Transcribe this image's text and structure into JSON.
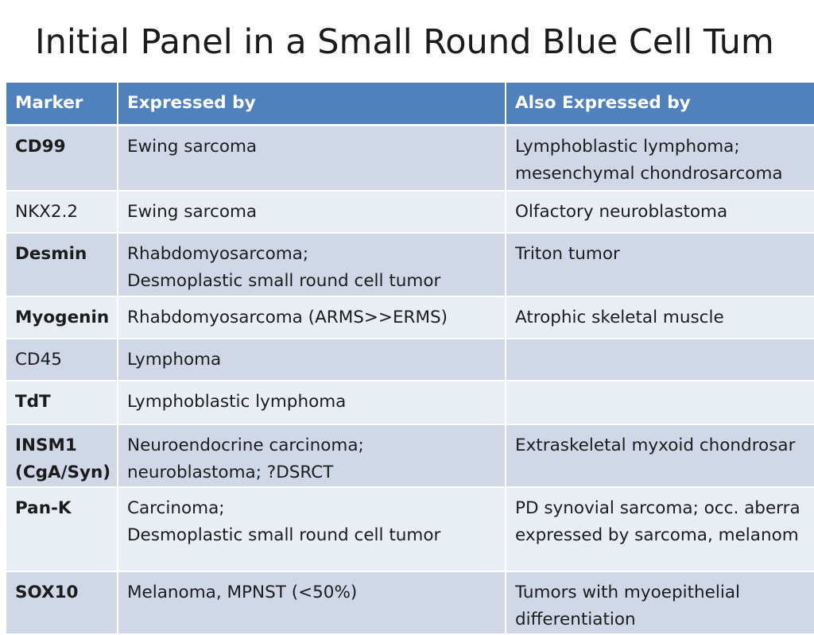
{
  "slide": {
    "title": "Initial Panel in a Small Round Blue Cell Tum"
  },
  "colors": {
    "header": "#4f81bd",
    "row_dark": "#d0d8e8",
    "row_light": "#e9edf4"
  },
  "table": {
    "headers": [
      "Marker",
      "Expressed by",
      "Also Expressed by"
    ],
    "rows": [
      {
        "marker": [
          "CD99"
        ],
        "marker_bold": true,
        "expressed": [
          "Ewing sarcoma"
        ],
        "also": [
          "Lymphoblastic lymphoma;",
          "mesenchymal chondrosarcoma"
        ]
      },
      {
        "marker": [
          "NKX2.2"
        ],
        "marker_bold": false,
        "expressed": [
          "Ewing sarcoma"
        ],
        "also": [
          "Olfactory neuroblastoma"
        ]
      },
      {
        "marker": [
          "Desmin"
        ],
        "marker_bold": true,
        "expressed": [
          "Rhabdomyosarcoma;",
          "Desmoplastic small round cell tumor"
        ],
        "also": [
          "Triton tumor"
        ]
      },
      {
        "marker": [
          "Myogenin"
        ],
        "marker_bold": true,
        "expressed": [
          "Rhabdomyosarcoma (ARMS>>ERMS)"
        ],
        "also": [
          "Atrophic skeletal muscle"
        ]
      },
      {
        "marker": [
          "CD45"
        ],
        "marker_bold": false,
        "expressed": [
          "Lymphoma"
        ],
        "also": []
      },
      {
        "marker": [
          "TdT"
        ],
        "marker_bold": true,
        "expressed": [
          "Lymphoblastic lymphoma"
        ],
        "also": []
      },
      {
        "marker": [
          "INSM1",
          "(CgA/Syn)"
        ],
        "marker_bold": true,
        "expressed": [
          "Neuroendocrine carcinoma;",
          "neuroblastoma; ?DSRCT"
        ],
        "also": [
          "Extraskeletal myxoid chondrosar"
        ]
      },
      {
        "marker": [
          "Pan-K"
        ],
        "marker_bold": true,
        "expressed": [
          "Carcinoma;",
          "Desmoplastic small round cell tumor"
        ],
        "also": [
          "PD synovial sarcoma; occ. aberra",
          "expressed by sarcoma, melanom"
        ]
      },
      {
        "marker": [
          "SOX10"
        ],
        "marker_bold": true,
        "expressed": [
          "Melanoma, MPNST (<50%)"
        ],
        "also": [
          "Tumors with myoepithelial",
          "differentiation"
        ]
      }
    ]
  }
}
